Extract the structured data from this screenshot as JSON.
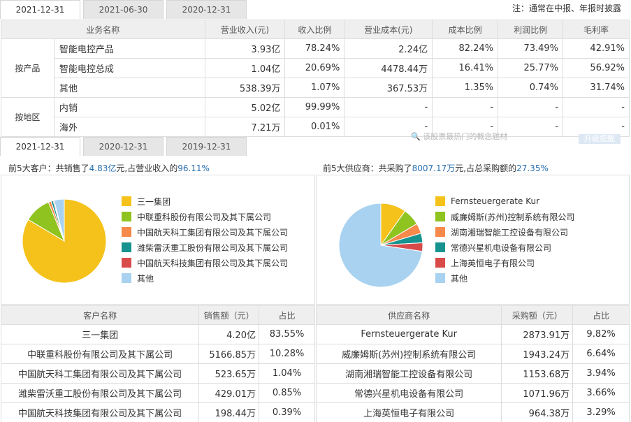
{
  "top_tabs": [
    "2021-12-31",
    "2021-06-30",
    "2020-12-31"
  ],
  "note": "注：通常在中报、年报时披露",
  "business": {
    "headers": [
      "业务名称",
      "营业收入(元)",
      "收入比例",
      "营业成本(元)",
      "成本比例",
      "利润比例",
      "毛利率"
    ],
    "groups": [
      {
        "label": "按产品",
        "rows": [
          [
            "智能电控产品",
            "3.93亿",
            "78.24%",
            "2.24亿",
            "82.24%",
            "73.49%",
            "42.91%"
          ],
          [
            "智能电控总成",
            "1.04亿",
            "20.69%",
            "4478.44万",
            "16.41%",
            "25.77%",
            "56.92%"
          ],
          [
            "其他",
            "538.39万",
            "1.07%",
            "367.53万",
            "1.35%",
            "0.74%",
            "31.74%"
          ]
        ]
      },
      {
        "label": "按地区",
        "rows": [
          [
            "内销",
            "5.02亿",
            "99.99%",
            "-",
            "-",
            "-",
            "-"
          ],
          [
            "海外",
            "7.21万",
            "0.01%",
            "-",
            "-",
            "-",
            "-"
          ]
        ]
      }
    ]
  },
  "bottom_tabs": [
    "2021-12-31",
    "2020-12-31",
    "2019-12-31"
  ],
  "ghost": {
    "search": "该股票最热门的概念题材",
    "button": "升级提醒"
  },
  "customers": {
    "summary_prefix": "前5大客户：共销售了",
    "summary_amount": "4.83亿",
    "summary_mid": "元,占营业收入的",
    "summary_pct": "96.11%",
    "headers": [
      "客户名称",
      "销售额（元）",
      "占比"
    ],
    "rows": [
      [
        "三一集团",
        "4.20亿",
        "83.55%"
      ],
      [
        "中联重科股份有限公司及其下属公司",
        "5166.85万",
        "10.28%"
      ],
      [
        "中国航天科工集团有限公司及其下属公司",
        "523.65万",
        "1.04%"
      ],
      [
        "潍柴雷沃重工股份有限公司及其下属公司",
        "429.01万",
        "0.85%"
      ],
      [
        "中国航天科技集团有限公司及其下属公司",
        "198.44万",
        "0.39%"
      ]
    ]
  },
  "suppliers": {
    "summary_prefix": "前5大供应商：共采购了",
    "summary_amount": "8007.17万",
    "summary_mid": "元,占总采购额的",
    "summary_pct": "27.35%",
    "headers": [
      "供应商名称",
      "采购额（元）",
      "占比"
    ],
    "rows": [
      [
        "Fernsteuergerate Kur",
        "2873.91万",
        "9.82%"
      ],
      [
        "威廉姆斯(苏州)控制系统有限公司",
        "1943.24万",
        "6.64%"
      ],
      [
        "湖南湘瑞智能工控设备有限公司",
        "1153.68万",
        "3.94%"
      ],
      [
        "常德兴星机电设备有限公司",
        "1071.96万",
        "3.66%"
      ],
      [
        "上海英恒电子有限公司",
        "964.38万",
        "3.29%"
      ]
    ]
  },
  "chart_data": [
    {
      "type": "pie",
      "title": "",
      "categories": [
        "三一集团",
        "中联重科股份有限公司及其下属公司",
        "中国航天科工集团有限公司及其下属公司",
        "潍柴雷沃重工股份有限公司及其下属公司",
        "中国航天科技集团有限公司及其下属公司",
        "其他"
      ],
      "values": [
        83.55,
        10.28,
        1.04,
        0.85,
        0.39,
        3.89
      ],
      "colors": [
        "#f5c21b",
        "#8fc31f",
        "#f7894a",
        "#17938f",
        "#d94a4a",
        "#a8d2f0"
      ],
      "legend": "right"
    },
    {
      "type": "pie",
      "title": "",
      "categories": [
        "Fernsteuergerate Kur",
        "威廉姆斯(苏州)控制系统有限公司",
        "湖南湘瑞智能工控设备有限公司",
        "常德兴星机电设备有限公司",
        "上海英恒电子有限公司",
        "其他"
      ],
      "values": [
        9.82,
        6.64,
        3.94,
        3.66,
        3.29,
        72.65
      ],
      "colors": [
        "#f5c21b",
        "#8fc31f",
        "#f7894a",
        "#17938f",
        "#d94a4a",
        "#a8d2f0"
      ],
      "legend": "right"
    }
  ]
}
